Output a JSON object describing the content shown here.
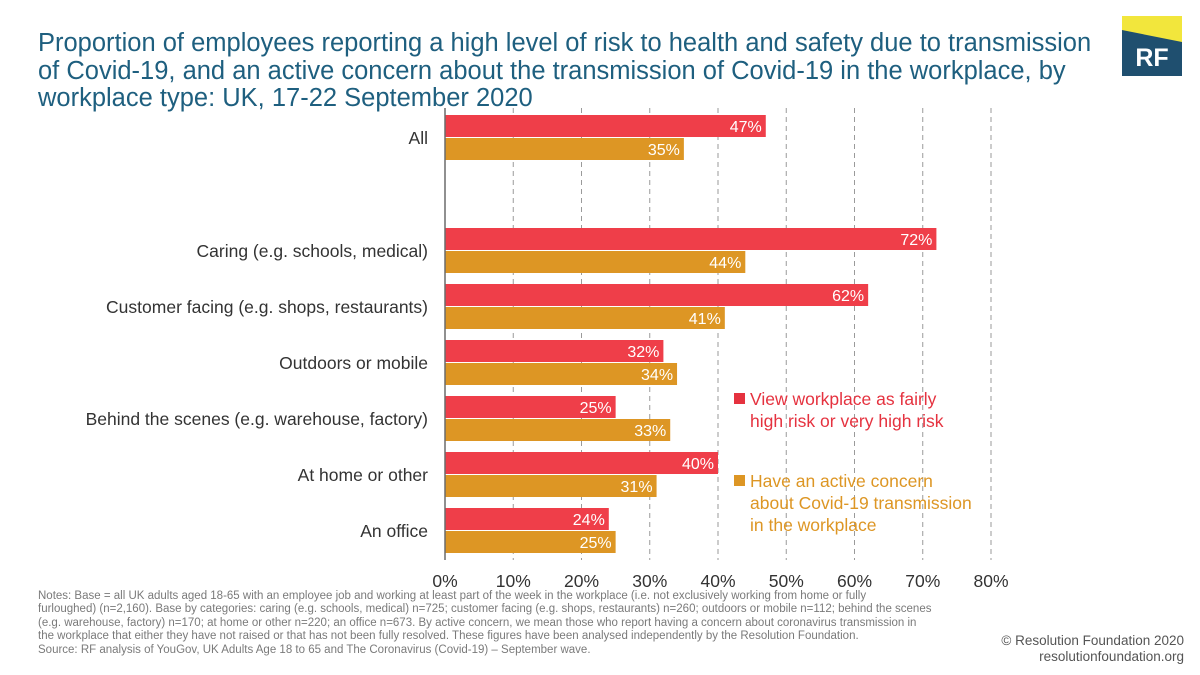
{
  "title": "Proportion of employees reporting a high level of risk to health and safety due to transmission of Covid-19, and an active concern about the transmission of Covid-19 in the workplace, by workplace type: UK, 17-22 September 2020",
  "logo": {
    "text": "RF",
    "colors": {
      "background": "#1f4f6f",
      "accent": "#f2e63c"
    }
  },
  "colors": {
    "series_a": "#ef3e49",
    "series_b": "#dd9624",
    "title": "#1e5f7f",
    "grid": "#9a9a9a"
  },
  "chart_data": {
    "type": "bar",
    "orientation": "horizontal",
    "categories": [
      "All",
      "Caring (e.g. schools, medical)",
      "Customer facing (e.g. shops, restaurants)",
      "Outdoors or mobile",
      "Behind the scenes (e.g. warehouse, factory)",
      "At home or other",
      "An office"
    ],
    "series": [
      {
        "name": "View workplace as fairly high risk or very high risk",
        "values": [
          47,
          72,
          62,
          32,
          25,
          40,
          24
        ]
      },
      {
        "name": "Have an active concern about Covid-19 transmission in the workplace",
        "values": [
          35,
          44,
          41,
          34,
          33,
          31,
          25
        ]
      }
    ],
    "xlim": [
      0,
      80
    ],
    "x_ticks": [
      "0%",
      "10%",
      "20%",
      "30%",
      "40%",
      "50%",
      "60%",
      "70%",
      "80%"
    ],
    "value_suffix": "%",
    "grid": "vertical dashed",
    "legend": "inside right"
  },
  "legend": {
    "a_lines": [
      "View workplace as fairly",
      "high risk or very high risk"
    ],
    "b_lines": [
      "Have an active concern",
      "about Covid-19 transmission",
      "in the workplace"
    ]
  },
  "notes": [
    "Notes: Base = all UK adults aged 18-65 with an employee job and working at least part of the week in the workplace (i.e. not exclusively working from home or fully",
    "furloughed) (n=2,160). Base by categories: caring (e.g. schools, medical) n=725; customer facing (e.g. shops, restaurants) n=260; outdoors or mobile n=112; behind the scenes",
    "(e.g. warehouse, factory) n=170; at home or other n=220; an office n=673. By active concern, we mean those who report having a concern about coronavirus transmission in",
    "the workplace that either they have not raised or that has not been fully resolved. These figures have been analysed independently by the Resolution Foundation.",
    "Source: RF analysis of YouGov, UK Adults Age 18 to 65 and The Coronavirus (Covid-19) – September wave."
  ],
  "credit": {
    "line1": "© Resolution Foundation 2020",
    "line2": "resolutionfoundation.org"
  }
}
